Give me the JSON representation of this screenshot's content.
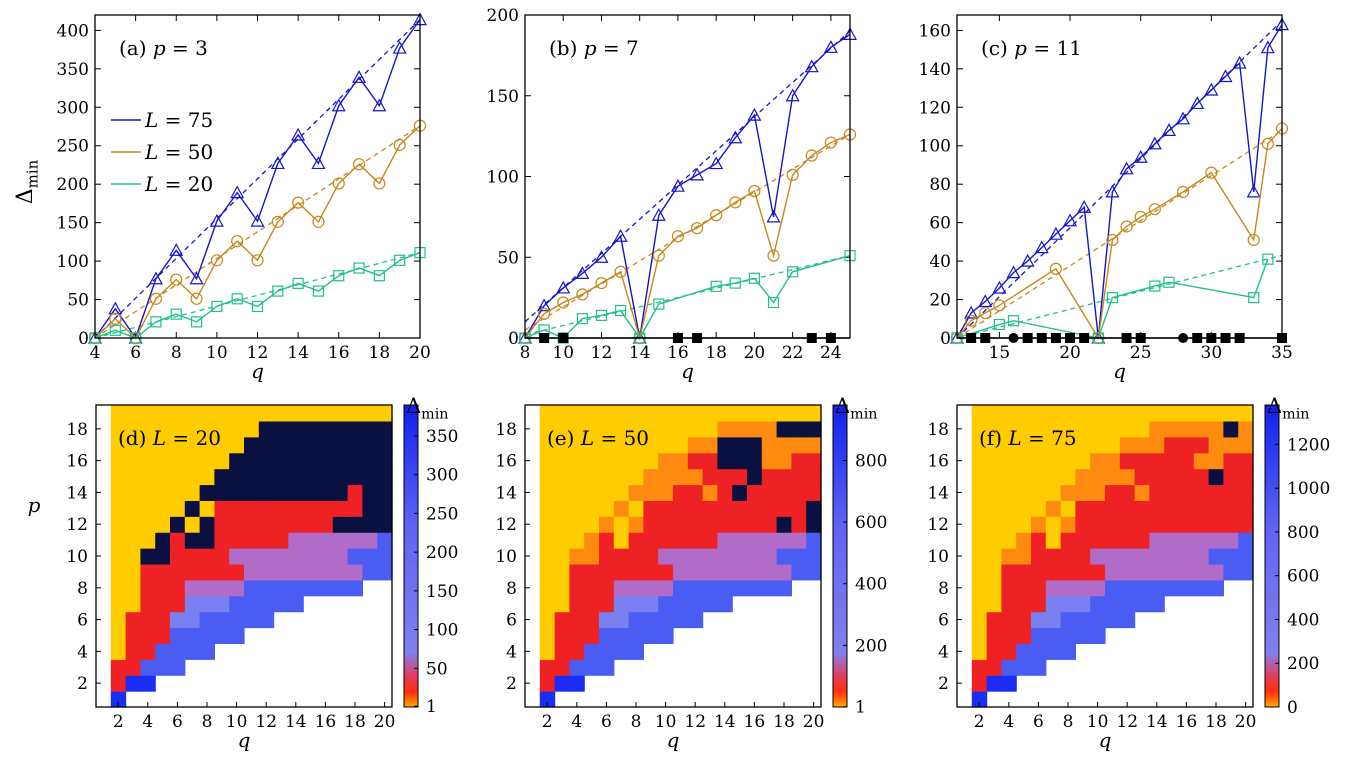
{
  "figure": {
    "shared": {
      "ylabel_top": "Δ_min",
      "xlabel": "q",
      "ylabel_bottom": "p",
      "colorbar_label": "Δ_min"
    }
  },
  "chart_data": [
    {
      "type": "line",
      "panel": "a",
      "label_prefix": "(a)",
      "label_param": "p = 3",
      "p": 3,
      "xlim": [
        4,
        20
      ],
      "ylim": [
        0,
        420
      ],
      "xticks": [
        4,
        6,
        8,
        10,
        12,
        14,
        16,
        18,
        20
      ],
      "yticks": [
        0,
        50,
        100,
        150,
        200,
        250,
        300,
        350,
        400
      ],
      "xlabel": "q",
      "ylabel": "Δ_min",
      "legend": {
        "position": "left",
        "entries": [
          "L = 75",
          "L = 50",
          "L = 20"
        ]
      },
      "series": [
        {
          "name": "L = 75",
          "color": "#1515cc",
          "marker": "triangle",
          "x": [
            4,
            5,
            6,
            7,
            8,
            9,
            10,
            11,
            12,
            13,
            14,
            15,
            16,
            17,
            18,
            19,
            20
          ],
          "y": [
            0,
            38,
            0,
            77,
            114,
            77,
            152,
            189,
            152,
            227,
            264,
            227,
            302,
            339,
            302,
            377,
            414
          ]
        },
        {
          "name": "L = 50",
          "color": "#c8861c",
          "marker": "circle",
          "x": [
            4,
            5,
            6,
            7,
            8,
            9,
            10,
            11,
            12,
            13,
            14,
            15,
            16,
            17,
            18,
            19,
            20
          ],
          "y": [
            0,
            25,
            0,
            51,
            76,
            51,
            101,
            126,
            101,
            151,
            176,
            151,
            201,
            226,
            201,
            251,
            276
          ]
        },
        {
          "name": "L = 20",
          "color": "#22c08a",
          "marker": "square",
          "x": [
            4,
            5,
            6,
            7,
            8,
            9,
            10,
            11,
            12,
            13,
            14,
            15,
            16,
            17,
            18,
            19,
            20
          ],
          "y": [
            0,
            10,
            0,
            21,
            31,
            21,
            41,
            51,
            41,
            61,
            71,
            61,
            81,
            91,
            81,
            101,
            111
          ]
        }
      ],
      "fits": [
        {
          "color": "#1515cc",
          "x": [
            4,
            20
          ],
          "y": [
            0,
            414
          ]
        },
        {
          "color": "#c8861c",
          "x": [
            4,
            20
          ],
          "y": [
            0,
            276
          ]
        },
        {
          "color": "#22c08a",
          "x": [
            4,
            20
          ],
          "y": [
            0,
            111
          ]
        }
      ],
      "zero_markers": {
        "squares": [],
        "circles": []
      }
    },
    {
      "type": "line",
      "panel": "b",
      "label_prefix": "(b)",
      "label_param": "p = 7",
      "p": 7,
      "xlim": [
        8,
        25
      ],
      "ylim": [
        0,
        200
      ],
      "xticks": [
        8,
        10,
        12,
        14,
        16,
        18,
        20,
        22,
        24
      ],
      "yticks": [
        0,
        50,
        100,
        150,
        200
      ],
      "xlabel": "q",
      "series": [
        {
          "name": "L = 75",
          "color": "#1515cc",
          "marker": "triangle",
          "x": [
            8,
            9,
            10,
            11,
            12,
            13,
            14,
            15,
            16,
            17,
            18,
            19,
            20,
            21,
            22,
            23,
            24,
            25
          ],
          "y": [
            0,
            20,
            31,
            40,
            50,
            63,
            0,
            76,
            94,
            101,
            108,
            124,
            138,
            75,
            150,
            168,
            180,
            188
          ]
        },
        {
          "name": "L = 50",
          "color": "#c8861c",
          "marker": "circle",
          "x": [
            8,
            9,
            10,
            11,
            12,
            13,
            14,
            15,
            16,
            17,
            18,
            19,
            20,
            21,
            22,
            23,
            24,
            25
          ],
          "y": [
            0,
            15,
            22,
            27,
            34,
            41,
            0,
            51,
            63,
            68,
            76,
            84,
            91,
            51,
            101,
            113,
            121,
            126
          ]
        },
        {
          "name": "L = 20",
          "color": "#22c08a",
          "marker": "square",
          "x": [
            8,
            9,
            10,
            11,
            12,
            13,
            14,
            15,
            18,
            19,
            20,
            21,
            22,
            25
          ],
          "y": [
            0,
            5,
            0,
            12,
            14,
            17,
            0,
            21,
            32,
            34,
            37,
            22,
            41,
            51
          ]
        }
      ],
      "fits": [
        {
          "color": "#1515cc",
          "x": [
            8,
            25
          ],
          "y": [
            10,
            190
          ]
        },
        {
          "color": "#c8861c",
          "x": [
            8,
            25
          ],
          "y": [
            5,
            126
          ]
        },
        {
          "color": "#22c08a",
          "x": [
            8,
            25
          ],
          "y": [
            2,
            51
          ]
        }
      ],
      "zero_markers": {
        "squares": [
          9,
          10,
          16,
          17,
          23,
          24
        ],
        "circles": []
      }
    },
    {
      "type": "line",
      "panel": "c",
      "label_prefix": "(c)",
      "label_param": "p = 11",
      "p": 11,
      "xlim": [
        12,
        35
      ],
      "ylim": [
        0,
        168
      ],
      "xticks": [
        15,
        20,
        25,
        30,
        35
      ],
      "yticks": [
        0,
        20,
        40,
        60,
        80,
        100,
        120,
        140,
        160
      ],
      "xlabel": "q",
      "series": [
        {
          "name": "L = 75",
          "color": "#1515cc",
          "marker": "triangle",
          "x": [
            12,
            13,
            14,
            15,
            16,
            17,
            18,
            19,
            20,
            21,
            22,
            23,
            24,
            25,
            26,
            27,
            28,
            29,
            30,
            31,
            32,
            33,
            34,
            35
          ],
          "y": [
            0,
            13,
            19,
            26,
            34,
            40,
            47,
            54,
            61,
            68,
            0,
            76,
            88,
            94,
            101,
            108,
            114,
            122,
            129,
            136,
            143,
            76,
            151,
            163
          ]
        },
        {
          "name": "L = 50",
          "color": "#c8861c",
          "marker": "circle",
          "x": [
            12,
            13,
            14,
            15,
            19,
            22,
            23,
            24,
            25,
            26,
            28,
            30,
            33,
            34,
            35
          ],
          "y": [
            0,
            9,
            13,
            17,
            36,
            0,
            51,
            58,
            63,
            67,
            76,
            86,
            51,
            101,
            109
          ]
        },
        {
          "name": "L = 20",
          "color": "#22c08a",
          "marker": "square",
          "x": [
            12,
            15,
            16,
            22,
            23,
            26,
            27,
            33,
            34
          ],
          "y": [
            0,
            7,
            9,
            0,
            21,
            27,
            29,
            21,
            41
          ]
        }
      ],
      "fits": [
        {
          "color": "#1515cc",
          "x": [
            12,
            35
          ],
          "y": [
            0,
            165
          ]
        },
        {
          "color": "#c8861c",
          "x": [
            12,
            35
          ],
          "y": [
            0,
            108
          ]
        },
        {
          "color": "#22c08a",
          "x": [
            12,
            35
          ],
          "y": [
            0,
            43
          ]
        }
      ],
      "zero_markers": {
        "squares": [
          13,
          14,
          17,
          18,
          19,
          20,
          21,
          24,
          25,
          29,
          30,
          31,
          32,
          35
        ],
        "circles": [
          16,
          28
        ]
      }
    },
    {
      "type": "heatmap",
      "panel": "d",
      "label_prefix": "(d)",
      "label_param": "L = 20",
      "L": 20,
      "xticks": [
        2,
        4,
        6,
        8,
        10,
        12,
        14,
        16,
        18,
        20
      ],
      "yticks": [
        2,
        4,
        6,
        8,
        10,
        12,
        14,
        16,
        18
      ],
      "xlabel": "q",
      "ylabel": "p",
      "colorbar": {
        "label": "Δ_min",
        "ticks": [
          1,
          50,
          100,
          150,
          200,
          250,
          300,
          350
        ],
        "max": 390
      },
      "grid": [
        "B..................",
        "RBB................",
        "RRBBB..............",
        "YRRBBBB............",
        "YRRRBBBBB..........",
        "YRRRPPBBBBB........",
        "YYRRRPPPBBBBB......",
        "YYRRRPPPPBBBBBBBB..",
        "YYRRRRRRRPPPPPPPPBB",
        "YYKKRRRRPPPPPPPPBBB",
        "YYYKRKKRRRRRPPPPPPB",
        "YYYYKYKRRRRRRRRKKKK",
        "YYYYYKYRRRRRRRRRRKK",
        "YYYYYYKKKKKKKKKKRKK",
        "YYYYYYYKKKKKKKKKKKK",
        "YYYYYYYYKKKKKKKKKKK",
        "YYYYYYYYYKKKKKKKKKK",
        "YYYYYYYYYYKKKKKKKKK",
        "YYYYYYYYYYYYYYYYYYY"
      ]
    },
    {
      "type": "heatmap",
      "panel": "e",
      "label_prefix": "(e)",
      "label_param": "L = 50",
      "L": 50,
      "xticks": [
        2,
        4,
        6,
        8,
        10,
        12,
        14,
        16,
        18,
        20
      ],
      "yticks": [
        2,
        4,
        6,
        8,
        10,
        12,
        14,
        16,
        18
      ],
      "xlabel": "q",
      "colorbar": {
        "label": "Δ_min",
        "ticks": [
          1,
          200,
          400,
          600,
          800
        ],
        "max": 980
      },
      "grid": [
        "B..................",
        "RBB................",
        "RRBBB..............",
        "YRRBBBB............",
        "YRRRBBBBB..........",
        "YRRRPPBBBBB........",
        "YYRRRPPPBBBBB......",
        "YYRRRPPPPBBBBBBBB..",
        "YYRRRRRRRPPPPPPPPBB",
        "YYOORRRRPPPPPPPPBBB",
        "YYYORYRRRRRRPPPPPPB",
        "YYYYOYORRRRRRRRRKRK",
        "YYYYYOYRRRRRRRRRRRK",
        "YYYYYYOOORRORKRRRRR",
        "YYYYYYYOOOORRRKRRRR",
        "YYYYYYYYOORRKKKOORR",
        "YYYYYYYYYYOOKKKOOOO",
        "YYYYYYYYYYYYOOOOKKK",
        "YYYYYYYYYYYYYYYYYYY"
      ]
    },
    {
      "type": "heatmap",
      "panel": "f",
      "label_prefix": "(f)",
      "label_param": "L = 75",
      "L": 75,
      "xticks": [
        2,
        4,
        6,
        8,
        10,
        12,
        14,
        16,
        18,
        20
      ],
      "yticks": [
        2,
        4,
        6,
        8,
        10,
        12,
        14,
        16,
        18
      ],
      "xlabel": "q",
      "colorbar": {
        "label": "Δ_min",
        "ticks": [
          0,
          200,
          400,
          600,
          800,
          1000,
          1200
        ],
        "max": 1380
      },
      "grid": [
        "B..................",
        "RBB................",
        "RRBBB..............",
        "YRRBBBB............",
        "YRRRBBBBB..........",
        "YRRRPPBBBBB........",
        "YYRRRPPPBBBBB......",
        "YYRRRPPPPBBBBBBBB..",
        "YYRRRRRRRPPPPPPPPBB",
        "YYOORRRRPPPPPPPPBBB",
        "YYYORYRRRRRRPPPPPPB",
        "YYYYOYORRRRRRRRRRRR",
        "YYYYYOYRRRRRRRRRRRR",
        "YYYYYYOOORRORRRRRRR",
        "YYYYYYYOOOORRRRRKRR",
        "YYYYYYYYOORRRRROORR",
        "YYYYYYYYYYOOORRROOO",
        "YYYYYYYYYYYYOOOOOKO",
        "YYYYYYYYYYYYYYYYYYY"
      ]
    }
  ]
}
